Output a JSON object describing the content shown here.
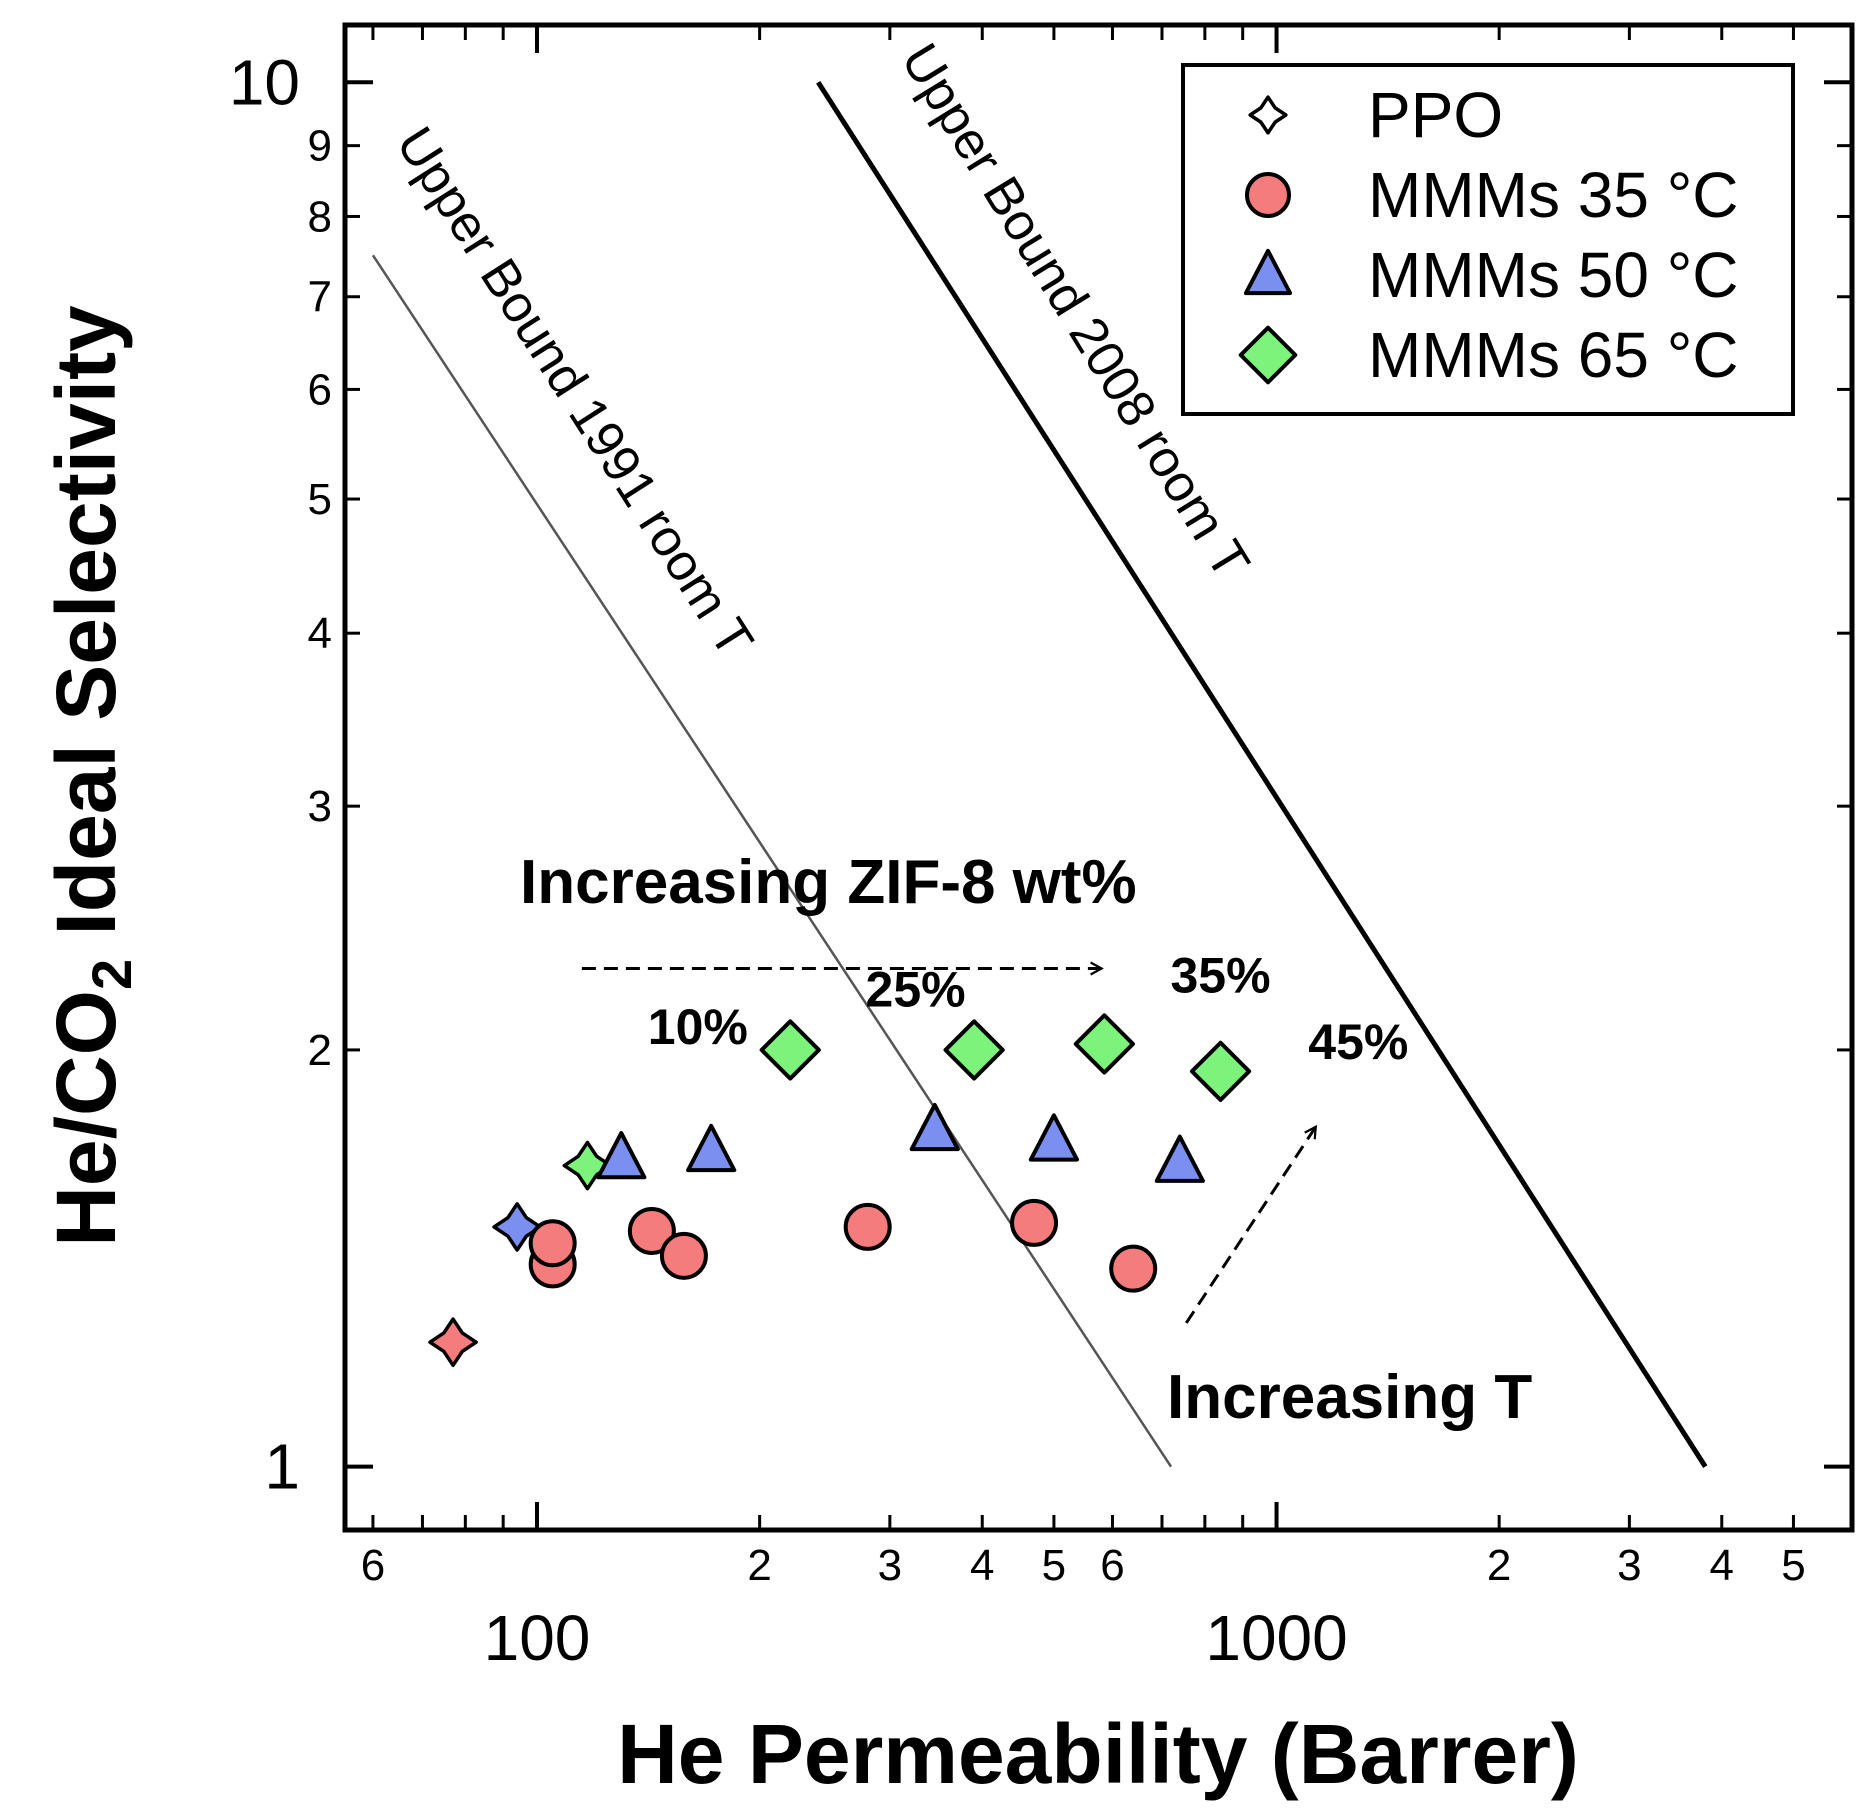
{
  "chart_data": {
    "type": "scatter",
    "xscale": "log",
    "yscale": "log",
    "xlim": [
      55,
      6000
    ],
    "ylim": [
      0.9,
      11
    ],
    "xlabel": "He Permeability (Barrer)",
    "ylabel_main": "He/CO",
    "ylabel_sub": "2",
    "ylabel_rest": " Ideal Selectivity",
    "x_major_ticks": [
      {
        "v": 100,
        "label": "100"
      },
      {
        "v": 1000,
        "label": "1000"
      }
    ],
    "x_minor_ticks": [
      {
        "v": 60,
        "label": "6"
      },
      {
        "v": 70,
        "label": ""
      },
      {
        "v": 80,
        "label": ""
      },
      {
        "v": 90,
        "label": ""
      },
      {
        "v": 200,
        "label": "2"
      },
      {
        "v": 300,
        "label": "3"
      },
      {
        "v": 400,
        "label": "4"
      },
      {
        "v": 500,
        "label": "5"
      },
      {
        "v": 600,
        "label": "6"
      },
      {
        "v": 700,
        "label": ""
      },
      {
        "v": 800,
        "label": ""
      },
      {
        "v": 900,
        "label": ""
      },
      {
        "v": 2000,
        "label": "2"
      },
      {
        "v": 3000,
        "label": "3"
      },
      {
        "v": 4000,
        "label": "4"
      },
      {
        "v": 5000,
        "label": "5"
      }
    ],
    "y_major_ticks": [
      {
        "v": 1,
        "label": "1"
      },
      {
        "v": 10,
        "label": "10"
      }
    ],
    "y_minor_ticks": [
      {
        "v": 2,
        "label": "2"
      },
      {
        "v": 3,
        "label": "3"
      },
      {
        "v": 4,
        "label": "4"
      },
      {
        "v": 5,
        "label": "5"
      },
      {
        "v": 6,
        "label": "6"
      },
      {
        "v": 7,
        "label": "7"
      },
      {
        "v": 8,
        "label": "8"
      },
      {
        "v": 9,
        "label": "9"
      }
    ],
    "legend": [
      {
        "label": "PPO",
        "marker": "star4",
        "color": "#ffffff"
      },
      {
        "label": "MMMs 35 °C",
        "marker": "circle",
        "color": "#f47c7c"
      },
      {
        "label": "MMMs 50 °C",
        "marker": "triangle",
        "color": "#7b8ff0"
      },
      {
        "label": "MMMs 65 °C",
        "marker": "diamond",
        "color": "#7cf47c"
      }
    ],
    "series": [
      {
        "name": "PPO",
        "marker": "star4",
        "points": [
          {
            "x": 77,
            "y": 1.23,
            "color": "#f47c7c"
          },
          {
            "x": 94,
            "y": 1.49,
            "color": "#7b8ff0"
          },
          {
            "x": 117,
            "y": 1.65,
            "color": "#7cf47c"
          }
        ]
      },
      {
        "name": "MMMs 35 °C",
        "marker": "circle",
        "color": "#f47c7c",
        "points": [
          {
            "x": 105,
            "y": 1.4
          },
          {
            "x": 105,
            "y": 1.45
          },
          {
            "x": 143,
            "y": 1.48
          },
          {
            "x": 158,
            "y": 1.42
          },
          {
            "x": 280,
            "y": 1.49
          },
          {
            "x": 470,
            "y": 1.5
          },
          {
            "x": 640,
            "y": 1.39
          }
        ]
      },
      {
        "name": "MMMs 50 °C",
        "marker": "triangle",
        "color": "#7b8ff0",
        "points": [
          {
            "x": 130,
            "y": 1.67
          },
          {
            "x": 172,
            "y": 1.69
          },
          {
            "x": 345,
            "y": 1.75
          },
          {
            "x": 500,
            "y": 1.72
          },
          {
            "x": 740,
            "y": 1.66
          }
        ]
      },
      {
        "name": "MMMs 65 °C",
        "marker": "diamond",
        "color": "#7cf47c",
        "points": [
          {
            "x": 220,
            "y": 2.0
          },
          {
            "x": 390,
            "y": 2.0
          },
          {
            "x": 585,
            "y": 2.02
          },
          {
            "x": 840,
            "y": 1.93
          }
        ]
      }
    ],
    "upper_bounds": [
      {
        "label": "Upper Bound 1991 room T",
        "x1": 60,
        "y1": 7.5,
        "x2": 720,
        "y2": 1.0,
        "width": 2.5,
        "color": "#555555"
      },
      {
        "label": "Upper Bound 2008 room T",
        "x1": 240,
        "y1": 10,
        "x2": 3800,
        "y2": 1.0,
        "width": 5,
        "color": "#000000"
      }
    ],
    "annotations": {
      "zif_label": "Increasing ZIF-8 wt%",
      "temp_label": "Increasing T",
      "wt_labels": [
        {
          "text": "10%",
          "x": 165,
          "y": 2.02
        },
        {
          "text": "25%",
          "x": 325,
          "y": 2.15
        },
        {
          "text": "35%",
          "x": 840,
          "y": 2.2
        },
        {
          "text": "45%",
          "x": 1290,
          "y": 1.97
        }
      ],
      "zif_arrow": {
        "x1": 115,
        "x2": 580,
        "y": 2.29
      },
      "temp_arrow": {
        "x1": 755,
        "y1": 1.27,
        "x2": 1130,
        "y2": 1.76
      }
    }
  }
}
